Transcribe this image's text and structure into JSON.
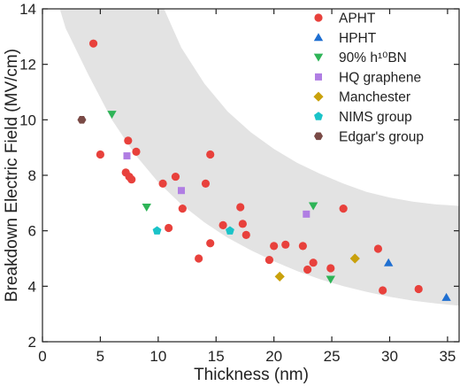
{
  "chart_data": {
    "type": "scatter",
    "xlabel": "Thickness (nm)",
    "ylabel": "Breakdown Electric Field (MV/cm)",
    "xlim": [
      0,
      36
    ],
    "ylim": [
      2,
      14
    ],
    "x_ticks": [
      0,
      5,
      10,
      15,
      20,
      25,
      30,
      35
    ],
    "y_ticks": [
      2,
      4,
      6,
      8,
      10,
      12,
      14
    ],
    "grid": false,
    "legend_position": "top-right",
    "band": {
      "fill": "#e3e3e3",
      "upper": [
        [
          10.5,
          14
        ],
        [
          12,
          12.6
        ],
        [
          14,
          11.3
        ],
        [
          16,
          10.3
        ],
        [
          18,
          9.55
        ],
        [
          20,
          8.95
        ],
        [
          22,
          8.45
        ],
        [
          24,
          8.05
        ],
        [
          26,
          7.7
        ],
        [
          28,
          7.4
        ],
        [
          30,
          7.2
        ],
        [
          32,
          7.05
        ],
        [
          34,
          6.95
        ],
        [
          36,
          6.9
        ]
      ],
      "lower": [
        [
          36,
          3.3
        ],
        [
          34,
          3.38
        ],
        [
          32,
          3.48
        ],
        [
          30,
          3.62
        ],
        [
          28,
          3.8
        ],
        [
          26,
          4.0
        ],
        [
          24,
          4.25
        ],
        [
          22,
          4.55
        ],
        [
          20,
          4.9
        ],
        [
          18,
          5.3
        ],
        [
          16,
          5.75
        ],
        [
          14,
          6.3
        ],
        [
          12,
          6.95
        ],
        [
          10,
          7.75
        ],
        [
          8,
          8.75
        ],
        [
          6,
          10.0
        ],
        [
          4,
          11.6
        ],
        [
          2,
          13.3
        ],
        [
          1.5,
          14
        ]
      ]
    },
    "series": [
      {
        "name": "APHT",
        "marker": "circle",
        "color": "#e8413c",
        "points": [
          [
            4.4,
            12.75
          ],
          [
            5,
            8.75
          ],
          [
            7.2,
            8.1
          ],
          [
            7.4,
            9.25
          ],
          [
            7.5,
            7.95
          ],
          [
            7.7,
            7.85
          ],
          [
            8.1,
            8.85
          ],
          [
            10.4,
            7.7
          ],
          [
            10.9,
            6.1
          ],
          [
            11.5,
            7.95
          ],
          [
            12.1,
            6.8
          ],
          [
            13.5,
            5.0
          ],
          [
            14.1,
            7.7
          ],
          [
            14.5,
            8.75
          ],
          [
            14.5,
            5.55
          ],
          [
            15.6,
            6.2
          ],
          [
            17.1,
            6.85
          ],
          [
            17.3,
            6.25
          ],
          [
            17.6,
            5.85
          ],
          [
            19.6,
            4.95
          ],
          [
            20.0,
            5.45
          ],
          [
            21.0,
            5.5
          ],
          [
            22.5,
            5.45
          ],
          [
            22.9,
            4.6
          ],
          [
            23.4,
            4.85
          ],
          [
            24.9,
            4.65
          ],
          [
            26.0,
            6.8
          ],
          [
            29.0,
            5.35
          ],
          [
            29.4,
            3.85
          ],
          [
            32.5,
            3.9
          ]
        ]
      },
      {
        "name": "HPHT",
        "marker": "triangle-up",
        "color": "#1f6fd1",
        "points": [
          [
            29.9,
            4.85
          ],
          [
            34.9,
            3.6
          ]
        ]
      },
      {
        "name": "90% h¹⁰BN",
        "marker": "triangle-down",
        "color": "#2eb457",
        "points": [
          [
            6.0,
            10.2
          ],
          [
            9.0,
            6.85
          ],
          [
            23.4,
            6.9
          ],
          [
            24.9,
            4.25
          ]
        ]
      },
      {
        "name": "HQ graphene",
        "marker": "square",
        "color": "#b07ee3",
        "points": [
          [
            7.3,
            8.7
          ],
          [
            12.0,
            7.45
          ],
          [
            22.8,
            6.6
          ]
        ]
      },
      {
        "name": "Manchester",
        "marker": "diamond",
        "color": "#c9a10c",
        "points": [
          [
            20.5,
            4.35
          ],
          [
            27.0,
            5.0
          ]
        ]
      },
      {
        "name": "NIMS group",
        "marker": "pentagon",
        "color": "#1ac3c8",
        "points": [
          [
            9.9,
            6.0
          ],
          [
            16.2,
            6.0
          ]
        ]
      },
      {
        "name": "Edgar's group",
        "marker": "hexagon",
        "color": "#7a4a46",
        "points": [
          [
            3.4,
            10.0
          ]
        ]
      }
    ]
  }
}
